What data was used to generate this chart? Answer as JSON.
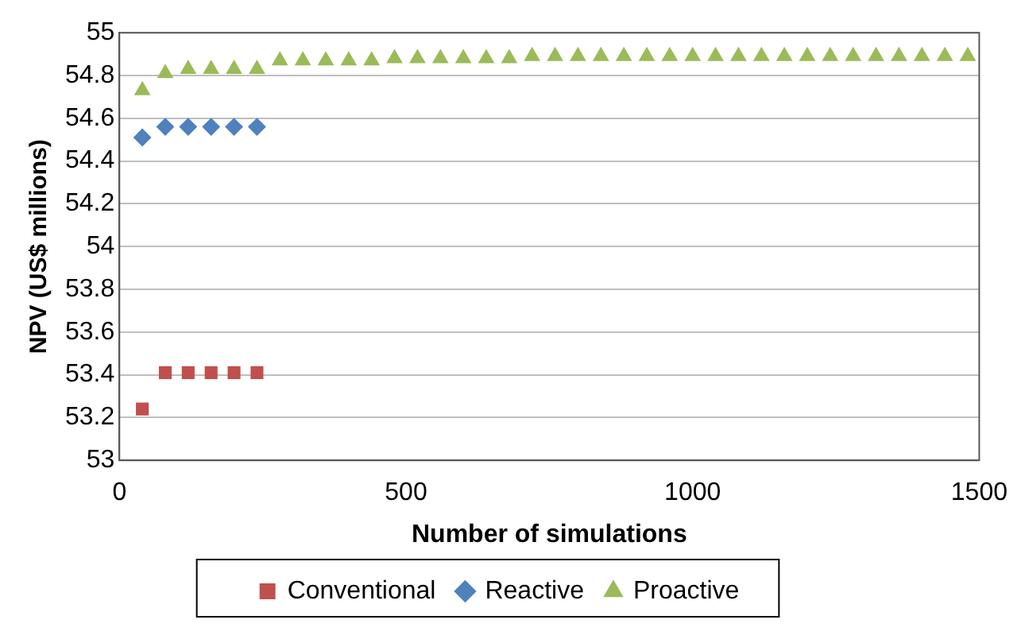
{
  "chart_data": {
    "type": "scatter",
    "xlabel": "Number of simulations",
    "ylabel": "NPV (US$ millions)",
    "xlim": [
      0,
      1500
    ],
    "xticks": [
      0,
      500,
      1000,
      1500
    ],
    "ylim": [
      53,
      55
    ],
    "yticks": [
      53,
      53.2,
      53.4,
      53.6,
      53.8,
      54,
      54.2,
      54.4,
      54.6,
      54.8,
      55
    ],
    "grid": "y",
    "legend": "bottom",
    "series": [
      {
        "name": "Conventional",
        "color": "#c0504d",
        "marker": "square",
        "x": [
          40,
          80,
          120,
          160,
          200,
          240
        ],
        "values": [
          53.24,
          53.41,
          53.41,
          53.41,
          53.41,
          53.41
        ]
      },
      {
        "name": "Reactive",
        "color": "#4f81bd",
        "marker": "diamond",
        "x": [
          40,
          80,
          120,
          160,
          200,
          240
        ],
        "values": [
          54.51,
          54.56,
          54.56,
          54.56,
          54.56,
          54.56
        ]
      },
      {
        "name": "Proactive",
        "color": "#9bbb59",
        "marker": "triangle",
        "x": [
          40,
          80,
          120,
          160,
          200,
          240,
          280,
          320,
          360,
          400,
          440,
          480,
          520,
          560,
          600,
          640,
          680,
          720,
          760,
          800,
          840,
          880,
          920,
          960,
          1000,
          1040,
          1080,
          1120,
          1160,
          1200,
          1240,
          1280,
          1320,
          1360,
          1400,
          1440,
          1480
        ],
        "values": [
          54.73,
          54.81,
          54.83,
          54.83,
          54.83,
          54.83,
          54.87,
          54.87,
          54.87,
          54.87,
          54.87,
          54.88,
          54.88,
          54.88,
          54.88,
          54.88,
          54.88,
          54.89,
          54.89,
          54.89,
          54.89,
          54.89,
          54.89,
          54.89,
          54.89,
          54.89,
          54.89,
          54.89,
          54.89,
          54.89,
          54.89,
          54.89,
          54.89,
          54.89,
          54.89,
          54.89,
          54.89
        ]
      }
    ]
  }
}
